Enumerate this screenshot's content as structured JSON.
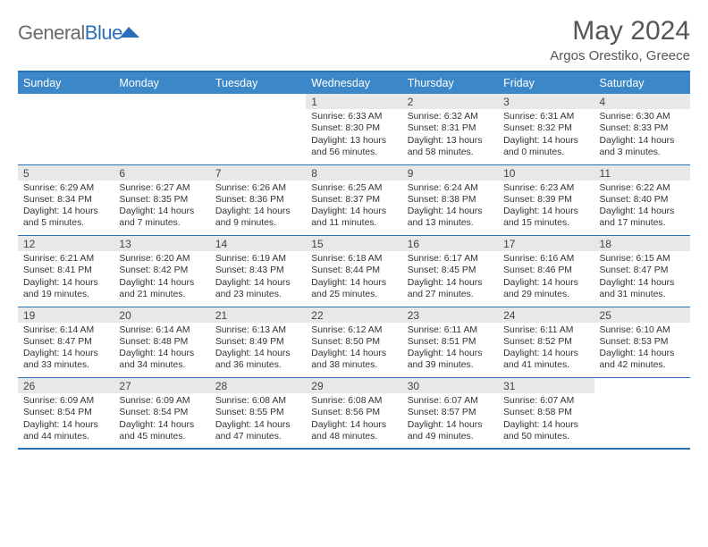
{
  "brand": {
    "part1": "General",
    "part2": "Blue"
  },
  "title": "May 2024",
  "subtitle": "Argos Orestiko, Greece",
  "weekday_header_bg": "#3b87c8",
  "accent_color": "#2a70b8",
  "daynum_bg": "#e8e8e8",
  "text_color": "#333333",
  "weekdays": [
    "Sunday",
    "Monday",
    "Tuesday",
    "Wednesday",
    "Thursday",
    "Friday",
    "Saturday"
  ],
  "weeks": [
    {
      "nums": [
        "",
        "",
        "",
        "1",
        "2",
        "3",
        "4"
      ],
      "cells": [
        null,
        null,
        null,
        {
          "sunrise": "6:33 AM",
          "sunset": "8:30 PM",
          "day_h": 13,
          "day_m": 56
        },
        {
          "sunrise": "6:32 AM",
          "sunset": "8:31 PM",
          "day_h": 13,
          "day_m": 58
        },
        {
          "sunrise": "6:31 AM",
          "sunset": "8:32 PM",
          "day_h": 14,
          "day_m": 0
        },
        {
          "sunrise": "6:30 AM",
          "sunset": "8:33 PM",
          "day_h": 14,
          "day_m": 3
        }
      ]
    },
    {
      "nums": [
        "5",
        "6",
        "7",
        "8",
        "9",
        "10",
        "11"
      ],
      "cells": [
        {
          "sunrise": "6:29 AM",
          "sunset": "8:34 PM",
          "day_h": 14,
          "day_m": 5
        },
        {
          "sunrise": "6:27 AM",
          "sunset": "8:35 PM",
          "day_h": 14,
          "day_m": 7
        },
        {
          "sunrise": "6:26 AM",
          "sunset": "8:36 PM",
          "day_h": 14,
          "day_m": 9
        },
        {
          "sunrise": "6:25 AM",
          "sunset": "8:37 PM",
          "day_h": 14,
          "day_m": 11
        },
        {
          "sunrise": "6:24 AM",
          "sunset": "8:38 PM",
          "day_h": 14,
          "day_m": 13
        },
        {
          "sunrise": "6:23 AM",
          "sunset": "8:39 PM",
          "day_h": 14,
          "day_m": 15
        },
        {
          "sunrise": "6:22 AM",
          "sunset": "8:40 PM",
          "day_h": 14,
          "day_m": 17
        }
      ]
    },
    {
      "nums": [
        "12",
        "13",
        "14",
        "15",
        "16",
        "17",
        "18"
      ],
      "cells": [
        {
          "sunrise": "6:21 AM",
          "sunset": "8:41 PM",
          "day_h": 14,
          "day_m": 19
        },
        {
          "sunrise": "6:20 AM",
          "sunset": "8:42 PM",
          "day_h": 14,
          "day_m": 21
        },
        {
          "sunrise": "6:19 AM",
          "sunset": "8:43 PM",
          "day_h": 14,
          "day_m": 23
        },
        {
          "sunrise": "6:18 AM",
          "sunset": "8:44 PM",
          "day_h": 14,
          "day_m": 25
        },
        {
          "sunrise": "6:17 AM",
          "sunset": "8:45 PM",
          "day_h": 14,
          "day_m": 27
        },
        {
          "sunrise": "6:16 AM",
          "sunset": "8:46 PM",
          "day_h": 14,
          "day_m": 29
        },
        {
          "sunrise": "6:15 AM",
          "sunset": "8:47 PM",
          "day_h": 14,
          "day_m": 31
        }
      ]
    },
    {
      "nums": [
        "19",
        "20",
        "21",
        "22",
        "23",
        "24",
        "25"
      ],
      "cells": [
        {
          "sunrise": "6:14 AM",
          "sunset": "8:47 PM",
          "day_h": 14,
          "day_m": 33
        },
        {
          "sunrise": "6:14 AM",
          "sunset": "8:48 PM",
          "day_h": 14,
          "day_m": 34
        },
        {
          "sunrise": "6:13 AM",
          "sunset": "8:49 PM",
          "day_h": 14,
          "day_m": 36
        },
        {
          "sunrise": "6:12 AM",
          "sunset": "8:50 PM",
          "day_h": 14,
          "day_m": 38
        },
        {
          "sunrise": "6:11 AM",
          "sunset": "8:51 PM",
          "day_h": 14,
          "day_m": 39
        },
        {
          "sunrise": "6:11 AM",
          "sunset": "8:52 PM",
          "day_h": 14,
          "day_m": 41
        },
        {
          "sunrise": "6:10 AM",
          "sunset": "8:53 PM",
          "day_h": 14,
          "day_m": 42
        }
      ]
    },
    {
      "nums": [
        "26",
        "27",
        "28",
        "29",
        "30",
        "31",
        ""
      ],
      "cells": [
        {
          "sunrise": "6:09 AM",
          "sunset": "8:54 PM",
          "day_h": 14,
          "day_m": 44
        },
        {
          "sunrise": "6:09 AM",
          "sunset": "8:54 PM",
          "day_h": 14,
          "day_m": 45
        },
        {
          "sunrise": "6:08 AM",
          "sunset": "8:55 PM",
          "day_h": 14,
          "day_m": 47
        },
        {
          "sunrise": "6:08 AM",
          "sunset": "8:56 PM",
          "day_h": 14,
          "day_m": 48
        },
        {
          "sunrise": "6:07 AM",
          "sunset": "8:57 PM",
          "day_h": 14,
          "day_m": 49
        },
        {
          "sunrise": "6:07 AM",
          "sunset": "8:58 PM",
          "day_h": 14,
          "day_m": 50
        },
        null
      ]
    }
  ]
}
